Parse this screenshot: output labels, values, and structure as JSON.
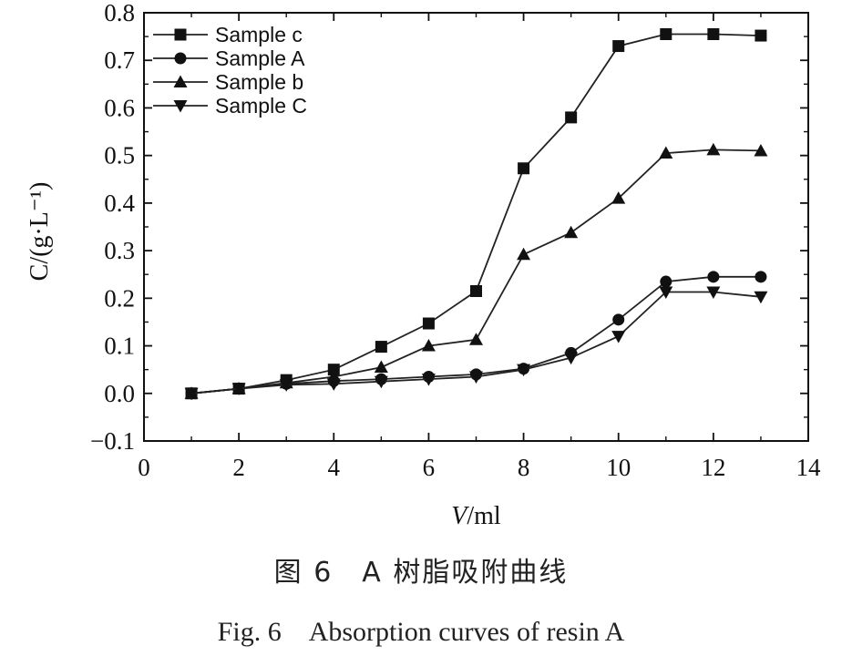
{
  "chart_data": {
    "type": "line",
    "xlabel_italic": "V",
    "xlabel_rest": "/ml",
    "ylabel": "C/(g·L⁻¹)",
    "xlim": [
      0,
      14
    ],
    "ylim": [
      -0.1,
      0.8
    ],
    "xticks": [
      0,
      2,
      4,
      6,
      8,
      10,
      12,
      14
    ],
    "yticks": [
      -0.1,
      0.0,
      0.1,
      0.2,
      0.3,
      0.4,
      0.5,
      0.6,
      0.7,
      0.8
    ],
    "ytick_labels": [
      "−0.1",
      "0.0",
      "0.1",
      "0.2",
      "0.3",
      "0.4",
      "0.5",
      "0.6",
      "0.7",
      "0.8"
    ],
    "x": [
      1,
      2,
      3,
      4,
      5,
      6,
      7,
      8,
      9,
      10,
      11,
      12,
      13
    ],
    "series": [
      {
        "name": "Sample c",
        "marker": "square",
        "values": [
          0.0,
          0.01,
          0.028,
          0.05,
          0.098,
          0.147,
          0.215,
          0.473,
          0.58,
          0.73,
          0.755,
          0.755,
          0.752
        ]
      },
      {
        "name": "Sample A",
        "marker": "circle",
        "values": [
          0.0,
          0.01,
          0.02,
          0.026,
          0.03,
          0.035,
          0.04,
          0.052,
          0.085,
          0.155,
          0.235,
          0.245,
          0.245
        ]
      },
      {
        "name": "Sample b",
        "marker": "triangle-up",
        "values": [
          0.0,
          0.01,
          0.022,
          0.035,
          0.055,
          0.1,
          0.113,
          0.292,
          0.338,
          0.41,
          0.505,
          0.512,
          0.51
        ]
      },
      {
        "name": "Sample C",
        "marker": "triangle-down",
        "values": [
          0.0,
          0.01,
          0.018,
          0.02,
          0.025,
          0.03,
          0.035,
          0.05,
          0.075,
          0.12,
          0.213,
          0.213,
          0.203
        ]
      }
    ],
    "legend_position": "top-left",
    "grid": false
  },
  "caption": {
    "chinese": "图 6　A 树脂吸附曲线",
    "english": "Fig. 6　Absorption curves of resin A"
  }
}
